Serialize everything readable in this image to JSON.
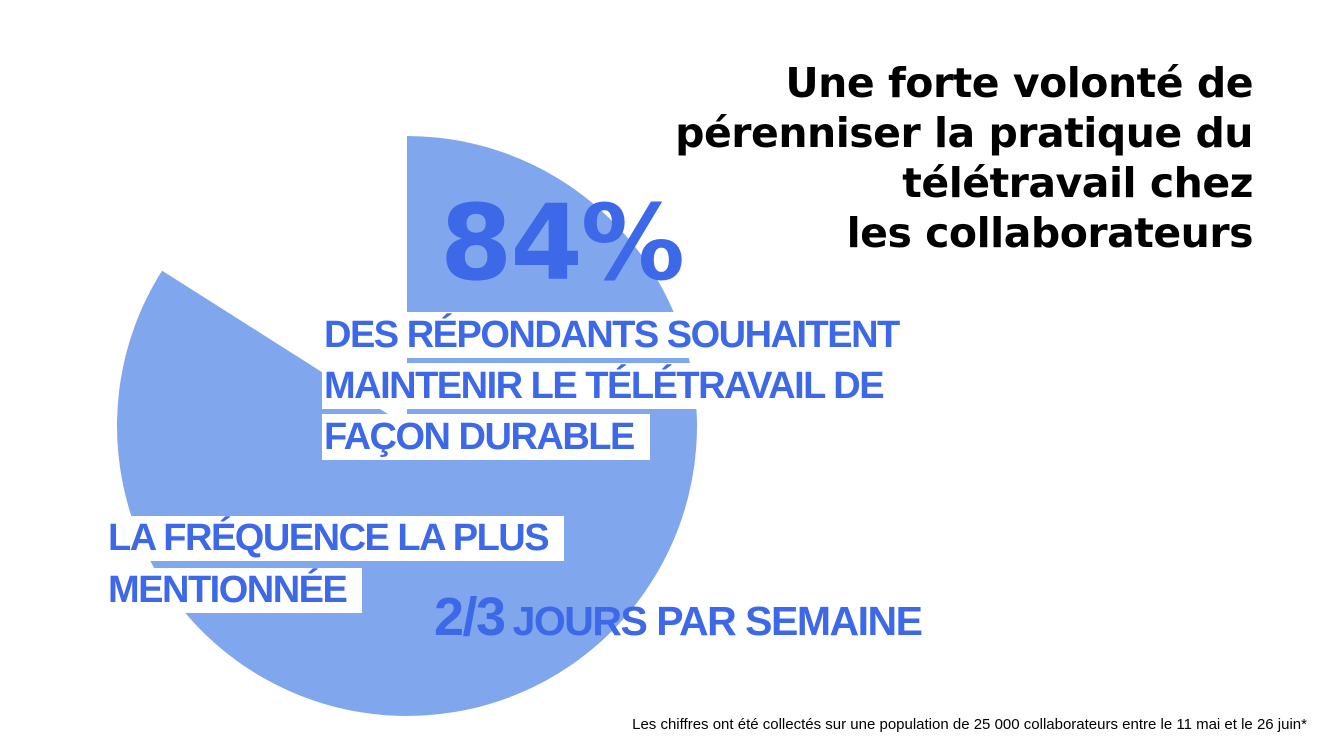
{
  "title": "Une forte volonté de\npérenniser la pratique du\ntélétravail chez\nles collaborateurs",
  "chart_data": {
    "type": "pie",
    "values": [
      84,
      16
    ],
    "highlight_color": "#80a6ee",
    "background_color": "#ffffff"
  },
  "stat": {
    "percent": "84%",
    "lines": [
      "DES RÉPONDANTS SOUHAITENT",
      "MAINTENIR LE TÉLÉTRAVAIL DE",
      "FAÇON DURABLE"
    ]
  },
  "frequency": {
    "lines": [
      "LA FRÉQUENCE LA PLUS",
      "MENTIONNÉE"
    ],
    "value": "2/3",
    "unit": "JOURS PAR SEMAINE"
  },
  "footnote": "Les chiffres ont été collectés sur une population de 25 000 collaborateurs entre le 11 mai et le 26 juin*",
  "colors": {
    "accent": "#3d68e8",
    "text": "#000000"
  }
}
